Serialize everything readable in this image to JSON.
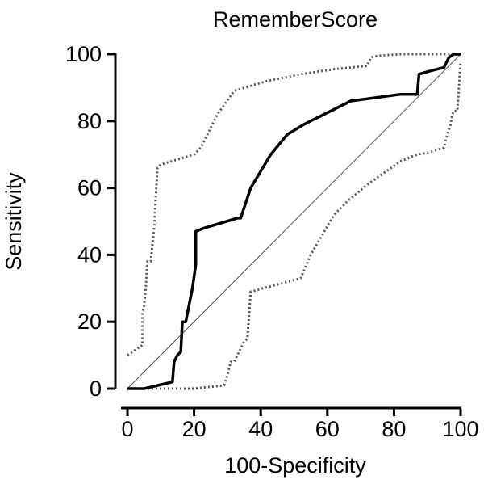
{
  "chart_data": {
    "type": "line",
    "title": "RememberScore",
    "xlabel": "100-Specificity",
    "ylabel": "Sensitivity",
    "xlim": [
      0,
      100
    ],
    "ylim": [
      0,
      100
    ],
    "xticks": [
      0,
      20,
      40,
      60,
      80,
      100
    ],
    "yticks": [
      0,
      20,
      40,
      60,
      80,
      100
    ],
    "grid": false,
    "series": [
      {
        "style": "solid-thick",
        "color": "#000000",
        "x": [
          0,
          5,
          13.5,
          14,
          15,
          16,
          16.5,
          17.5,
          19.5,
          20.5,
          20.5,
          23,
          33,
          34,
          37,
          43,
          48,
          53,
          61,
          67,
          82,
          87,
          87.5,
          91,
          95,
          96.5,
          98,
          99,
          100
        ],
        "y": [
          0,
          0,
          2,
          8,
          10,
          11,
          20,
          20,
          30,
          37,
          47,
          48,
          51,
          51,
          60,
          70,
          76,
          79,
          83,
          86,
          88,
          88,
          94,
          95,
          96,
          99,
          100,
          100,
          100
        ]
      },
      {
        "style": "reference-diagonal",
        "color": "#555555",
        "x": [
          0,
          100
        ],
        "y": [
          0,
          100
        ]
      },
      {
        "style": "dotted-upper-ci",
        "color": "#555555",
        "x": [
          0,
          4.5,
          4.5,
          5,
          5.5,
          6,
          7,
          8,
          9,
          10,
          20,
          22,
          27,
          32,
          42,
          52,
          62,
          72,
          73,
          75,
          82,
          90,
          100
        ],
        "y": [
          10,
          13,
          22,
          25,
          30,
          38,
          38,
          48,
          66,
          67,
          70,
          72,
          82,
          89,
          92,
          94,
          95.5,
          96.5,
          99,
          99.5,
          100,
          100,
          100
        ]
      },
      {
        "style": "dotted-lower-ci",
        "color": "#555555",
        "x": [
          0,
          20,
          29,
          30,
          31,
          32,
          35,
          36,
          36.5,
          37,
          52,
          55,
          62,
          66,
          72,
          82,
          87,
          90,
          95,
          96,
          97,
          97.5,
          98,
          99,
          99.5,
          100
        ],
        "y": [
          0,
          0,
          1,
          4,
          8,
          8,
          14,
          15,
          22,
          29,
          33,
          40,
          52,
          56,
          61,
          68,
          70,
          70.5,
          72,
          76,
          79,
          82,
          83,
          83,
          90,
          98
        ]
      }
    ]
  }
}
